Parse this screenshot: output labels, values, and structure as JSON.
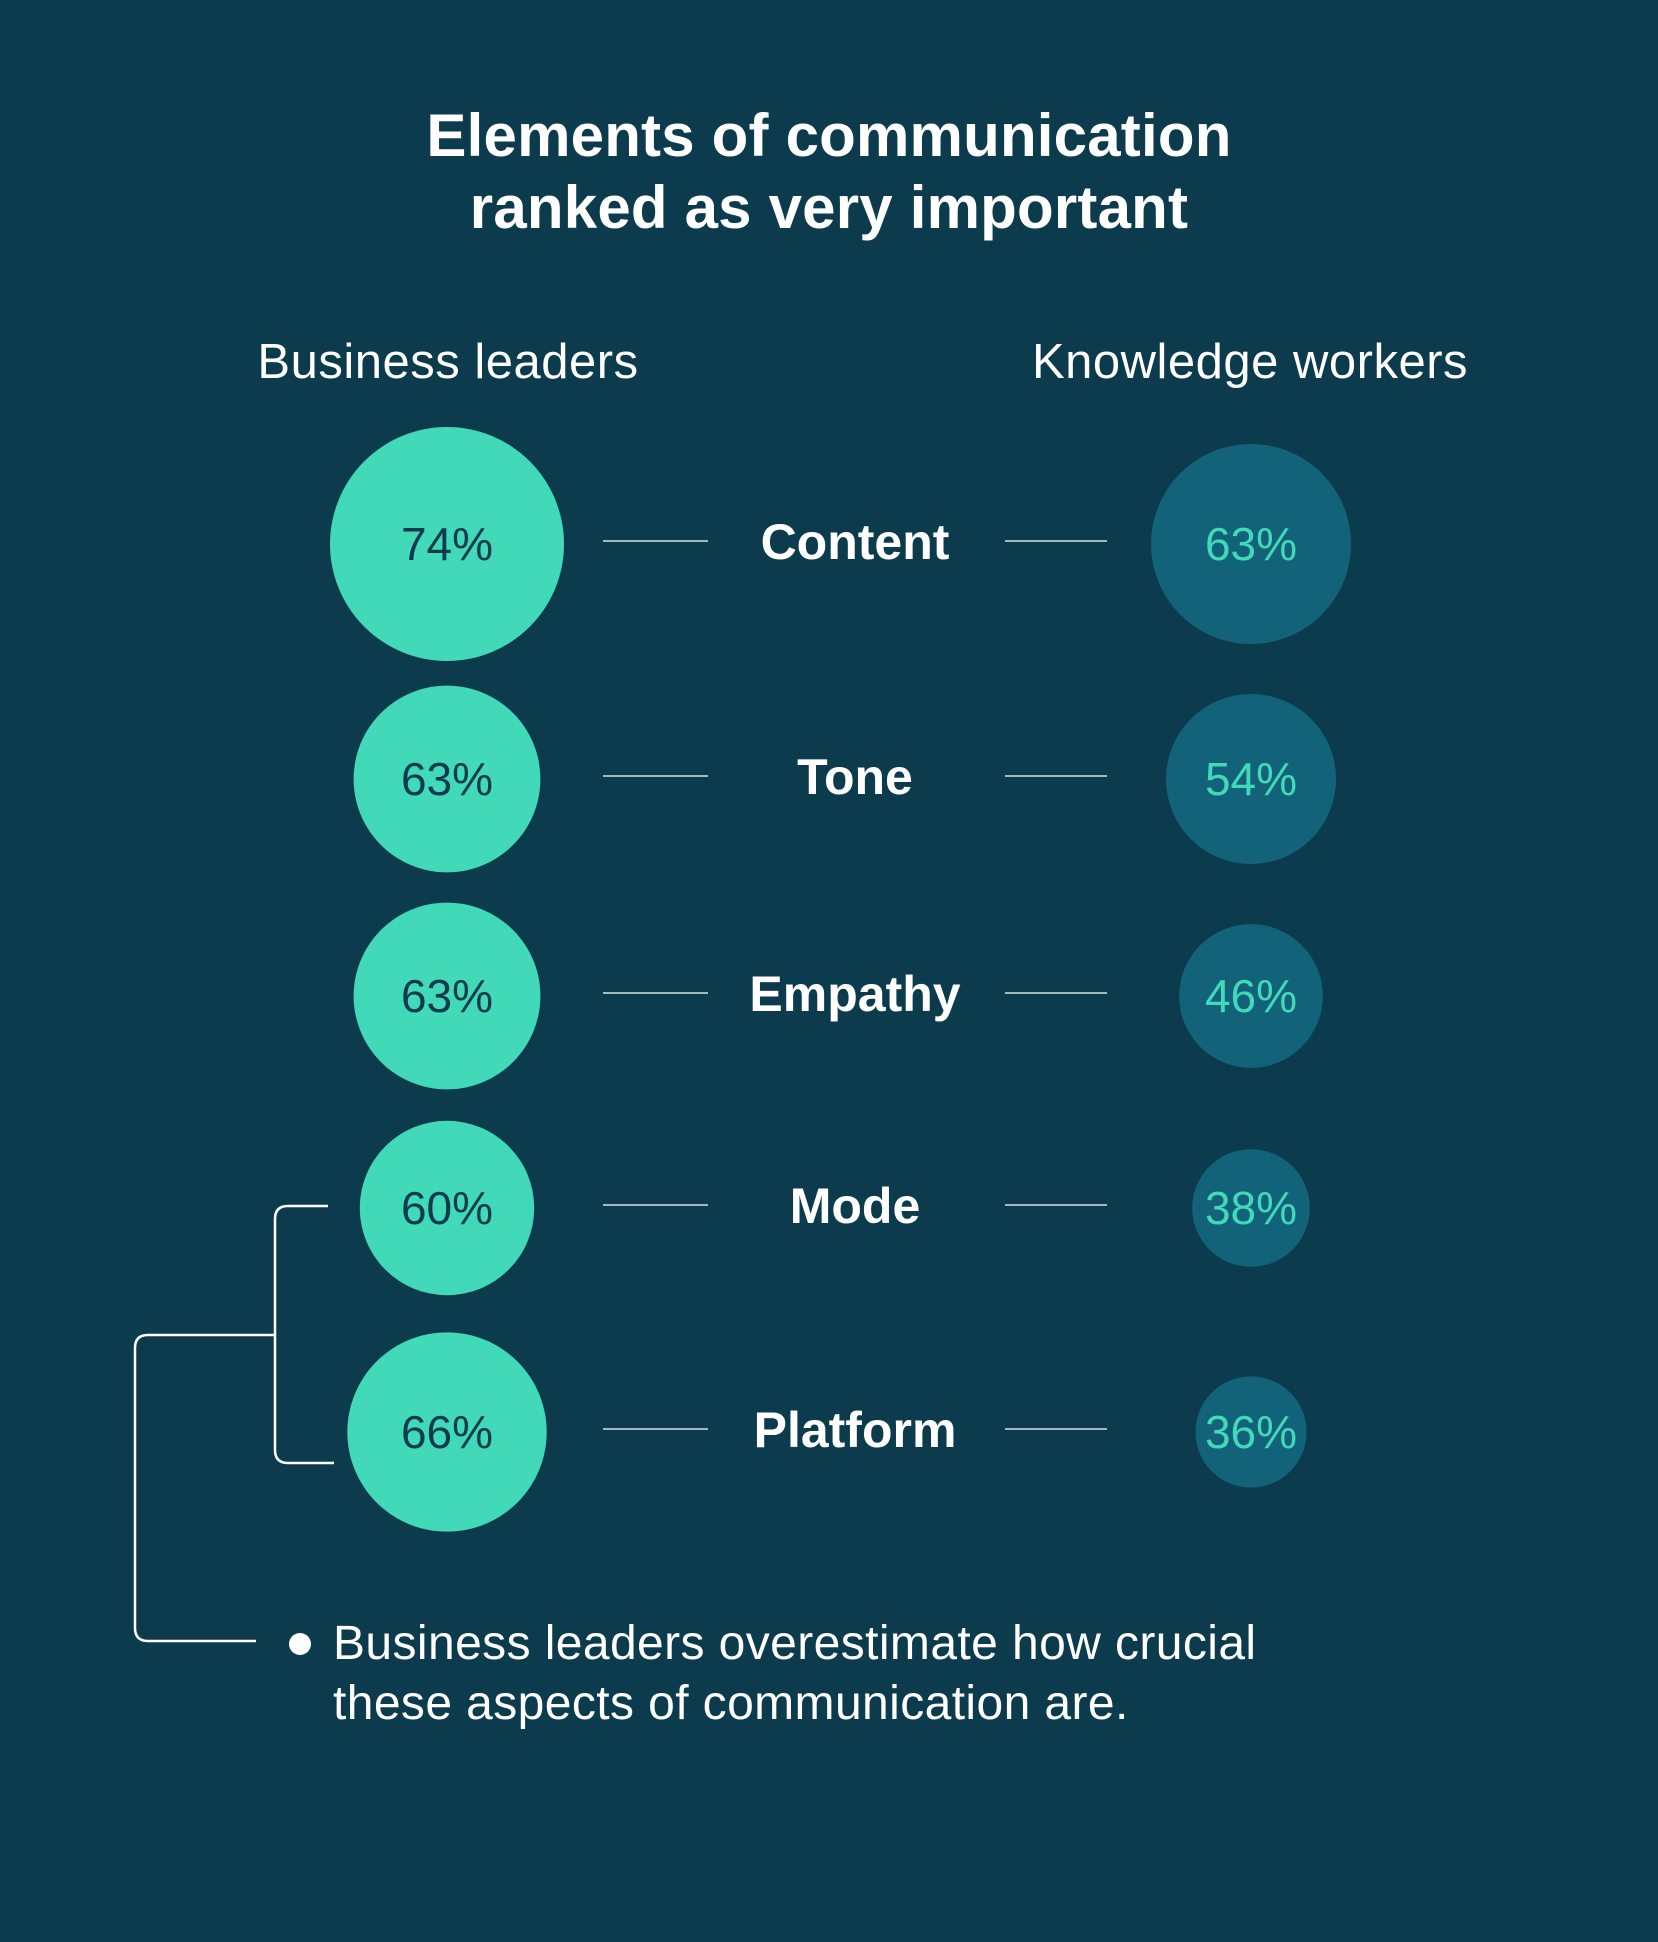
{
  "title": {
    "line1": "Elements of communication",
    "line2": "ranked as very important"
  },
  "columns": {
    "left": "Business leaders",
    "right": "Knowledge workers"
  },
  "colors": {
    "background": "#0b3b4d",
    "leaders_circle": "#42d9b9",
    "leaders_text": "#0b3b4d",
    "workers_circle": "#12637a",
    "workers_text": "#42d9b9",
    "connector": "#ffffff"
  },
  "chart_data": {
    "type": "bubble-comparison",
    "title": "Elements of communication ranked as very important",
    "categories": [
      "Content",
      "Tone",
      "Empathy",
      "Mode",
      "Platform"
    ],
    "series": [
      {
        "name": "Business leaders",
        "values": [
          74,
          63,
          63,
          60,
          66
        ],
        "labels": [
          "74%",
          "63%",
          "63%",
          "60%",
          "66%"
        ]
      },
      {
        "name": "Knowledge workers",
        "values": [
          63,
          54,
          46,
          38,
          36
        ],
        "labels": [
          "63%",
          "54%",
          "46%",
          "38%",
          "36%"
        ]
      }
    ],
    "annotation": {
      "applies_to": [
        "Mode",
        "Platform"
      ],
      "text": "Business leaders overestimate how crucial these aspects of communication are."
    }
  },
  "note": {
    "line1": "Business leaders overestimate how crucial",
    "line2": "these aspects of communication are."
  }
}
